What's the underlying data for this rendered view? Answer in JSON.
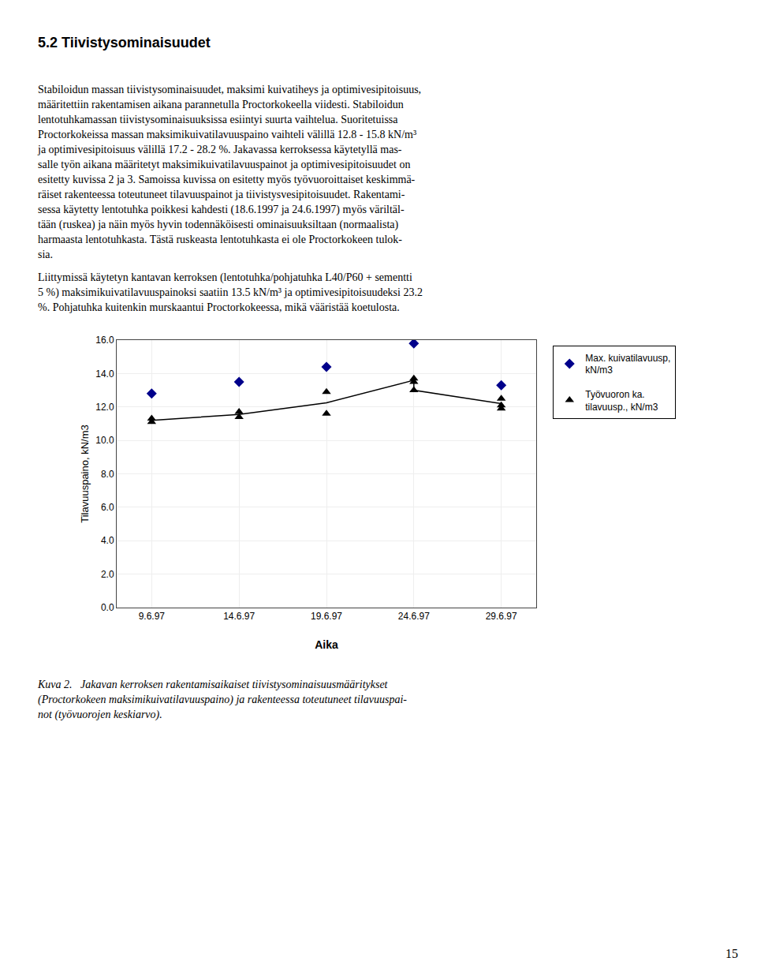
{
  "page_number": "15",
  "heading": "5.2 Tiivistysominaisuudet",
  "paragraphs": [
    [
      "Stabiloidun massan tiivistysominaisuudet, maksimi kuivatiheys ja optimivesipitoisuus,",
      "määritettiin rakentamisen aikana parannetulla Proctorkokeella viidesti. Stabiloidun",
      "lentotuhkamassan tiivistysominaisuuksissa esiintyi suurta vaihtelua. Suoritetuissa",
      "Proctorkokeissa massan maksimikuivatilavuuspaino vaihteli välillä 12.8 - 15.8 kN/m³",
      "ja optimivesipitoisuus välillä 17.2 - 28.2 %. Jakavassa kerroksessa käytetyllä mas-",
      "salle työn aikana määritetyt maksimikuivatilavuuspainot ja optimivesipitoisuudet on",
      "esitetty kuvissa 2 ja 3. Samoissa kuvissa on esitetty myös työvuoroittaiset keskimmä-",
      "räiset rakenteessa toteutuneet tilavuuspainot ja tiivistysvesipitoisuudet. Rakentami-",
      "sessa käytetty lentotuhka poikkesi kahdesti (18.6.1997 ja 24.6.1997) myös väriltäl-",
      "tään (ruskea) ja näin myös hyvin todennäköisesti ominaisuuksiltaan (normaalista)",
      "harmaasta lentotuhkasta. Tästä ruskeasta lentotuhkasta ei ole Proctorkokeen tulok-",
      "sia."
    ],
    [
      "Liittymissä käytetyn kantavan kerroksen (lentotuhka/pohjatuhka L40/P60 + sementti",
      "5 %) maksimikuivatilavuuspainoksi saatiin 13.5 kN/m³ ja optimivesipitoisuudeksi 23.2",
      "%. Pohjatuhka kuitenkin murskaantui Proctorkokeessa, mikä vääristää koetulosta."
    ]
  ],
  "caption": [
    "Kuva 2.   Jakavan kerroksen rakentamisaikaiset tiivistysominaisuusmääritykset",
    "(Proctorkokeen maksimikuivatilavuuspaino) ja rakenteessa toteutuneet tilavuuspai-",
    "not (työvuorojen keskiarvo)."
  ],
  "chart_data": {
    "type": "scatter",
    "xlabel": "Aika",
    "ylabel": "Tilavuuspaino, kN/m3",
    "xlim": [
      -0.4,
      4.4
    ],
    "xticks": [
      {
        "value": 0,
        "label": "9.6.97"
      },
      {
        "value": 1,
        "label": "14.6.97"
      },
      {
        "value": 2,
        "label": "19.6.97"
      },
      {
        "value": 3,
        "label": "24.6.97"
      },
      {
        "value": 4,
        "label": "29.6.97"
      }
    ],
    "ylim": [
      0.0,
      16.0
    ],
    "yticks": [
      {
        "value": 0,
        "label": "0.0"
      },
      {
        "value": 2,
        "label": "2.0"
      },
      {
        "value": 4,
        "label": "4.0"
      },
      {
        "value": 6,
        "label": "6.0"
      },
      {
        "value": 8,
        "label": "8.0"
      },
      {
        "value": 10,
        "label": "10.0"
      },
      {
        "value": 12,
        "label": "12.0"
      },
      {
        "value": 14,
        "label": "14.0"
      },
      {
        "value": 16,
        "label": "16.0"
      }
    ],
    "grid": true,
    "legend": "upper right",
    "series": [
      {
        "name": "Max. kuivatilavuusp,\nkN/m3",
        "type": "scatter",
        "marker": "diamond",
        "color": "#00008B",
        "x": [
          0,
          1,
          2,
          3,
          4
        ],
        "values": [
          12.8,
          13.5,
          14.4,
          15.8,
          13.3
        ]
      },
      {
        "name": "Työvuoron ka.\ntilavuusp., kN/m3",
        "type": "scatter",
        "marker": "triangle-up",
        "color": "#000000",
        "x": [
          0,
          0,
          1,
          1,
          2,
          2,
          3,
          3,
          3,
          4,
          4,
          4
        ],
        "values": [
          11.3,
          11.1,
          11.7,
          11.4,
          12.9,
          11.6,
          13.5,
          13.7,
          13.0,
          11.9,
          12.1,
          12.5
        ]
      },
      {
        "name": "Työvuoron ka.\ntilavuusp., kN/m3",
        "type": "line",
        "line_style": "solid",
        "color": "#000000",
        "x": [
          0,
          1,
          2,
          3,
          3,
          4
        ],
        "values": [
          11.2,
          11.55,
          12.25,
          13.6,
          13.0,
          12.2
        ]
      }
    ]
  }
}
